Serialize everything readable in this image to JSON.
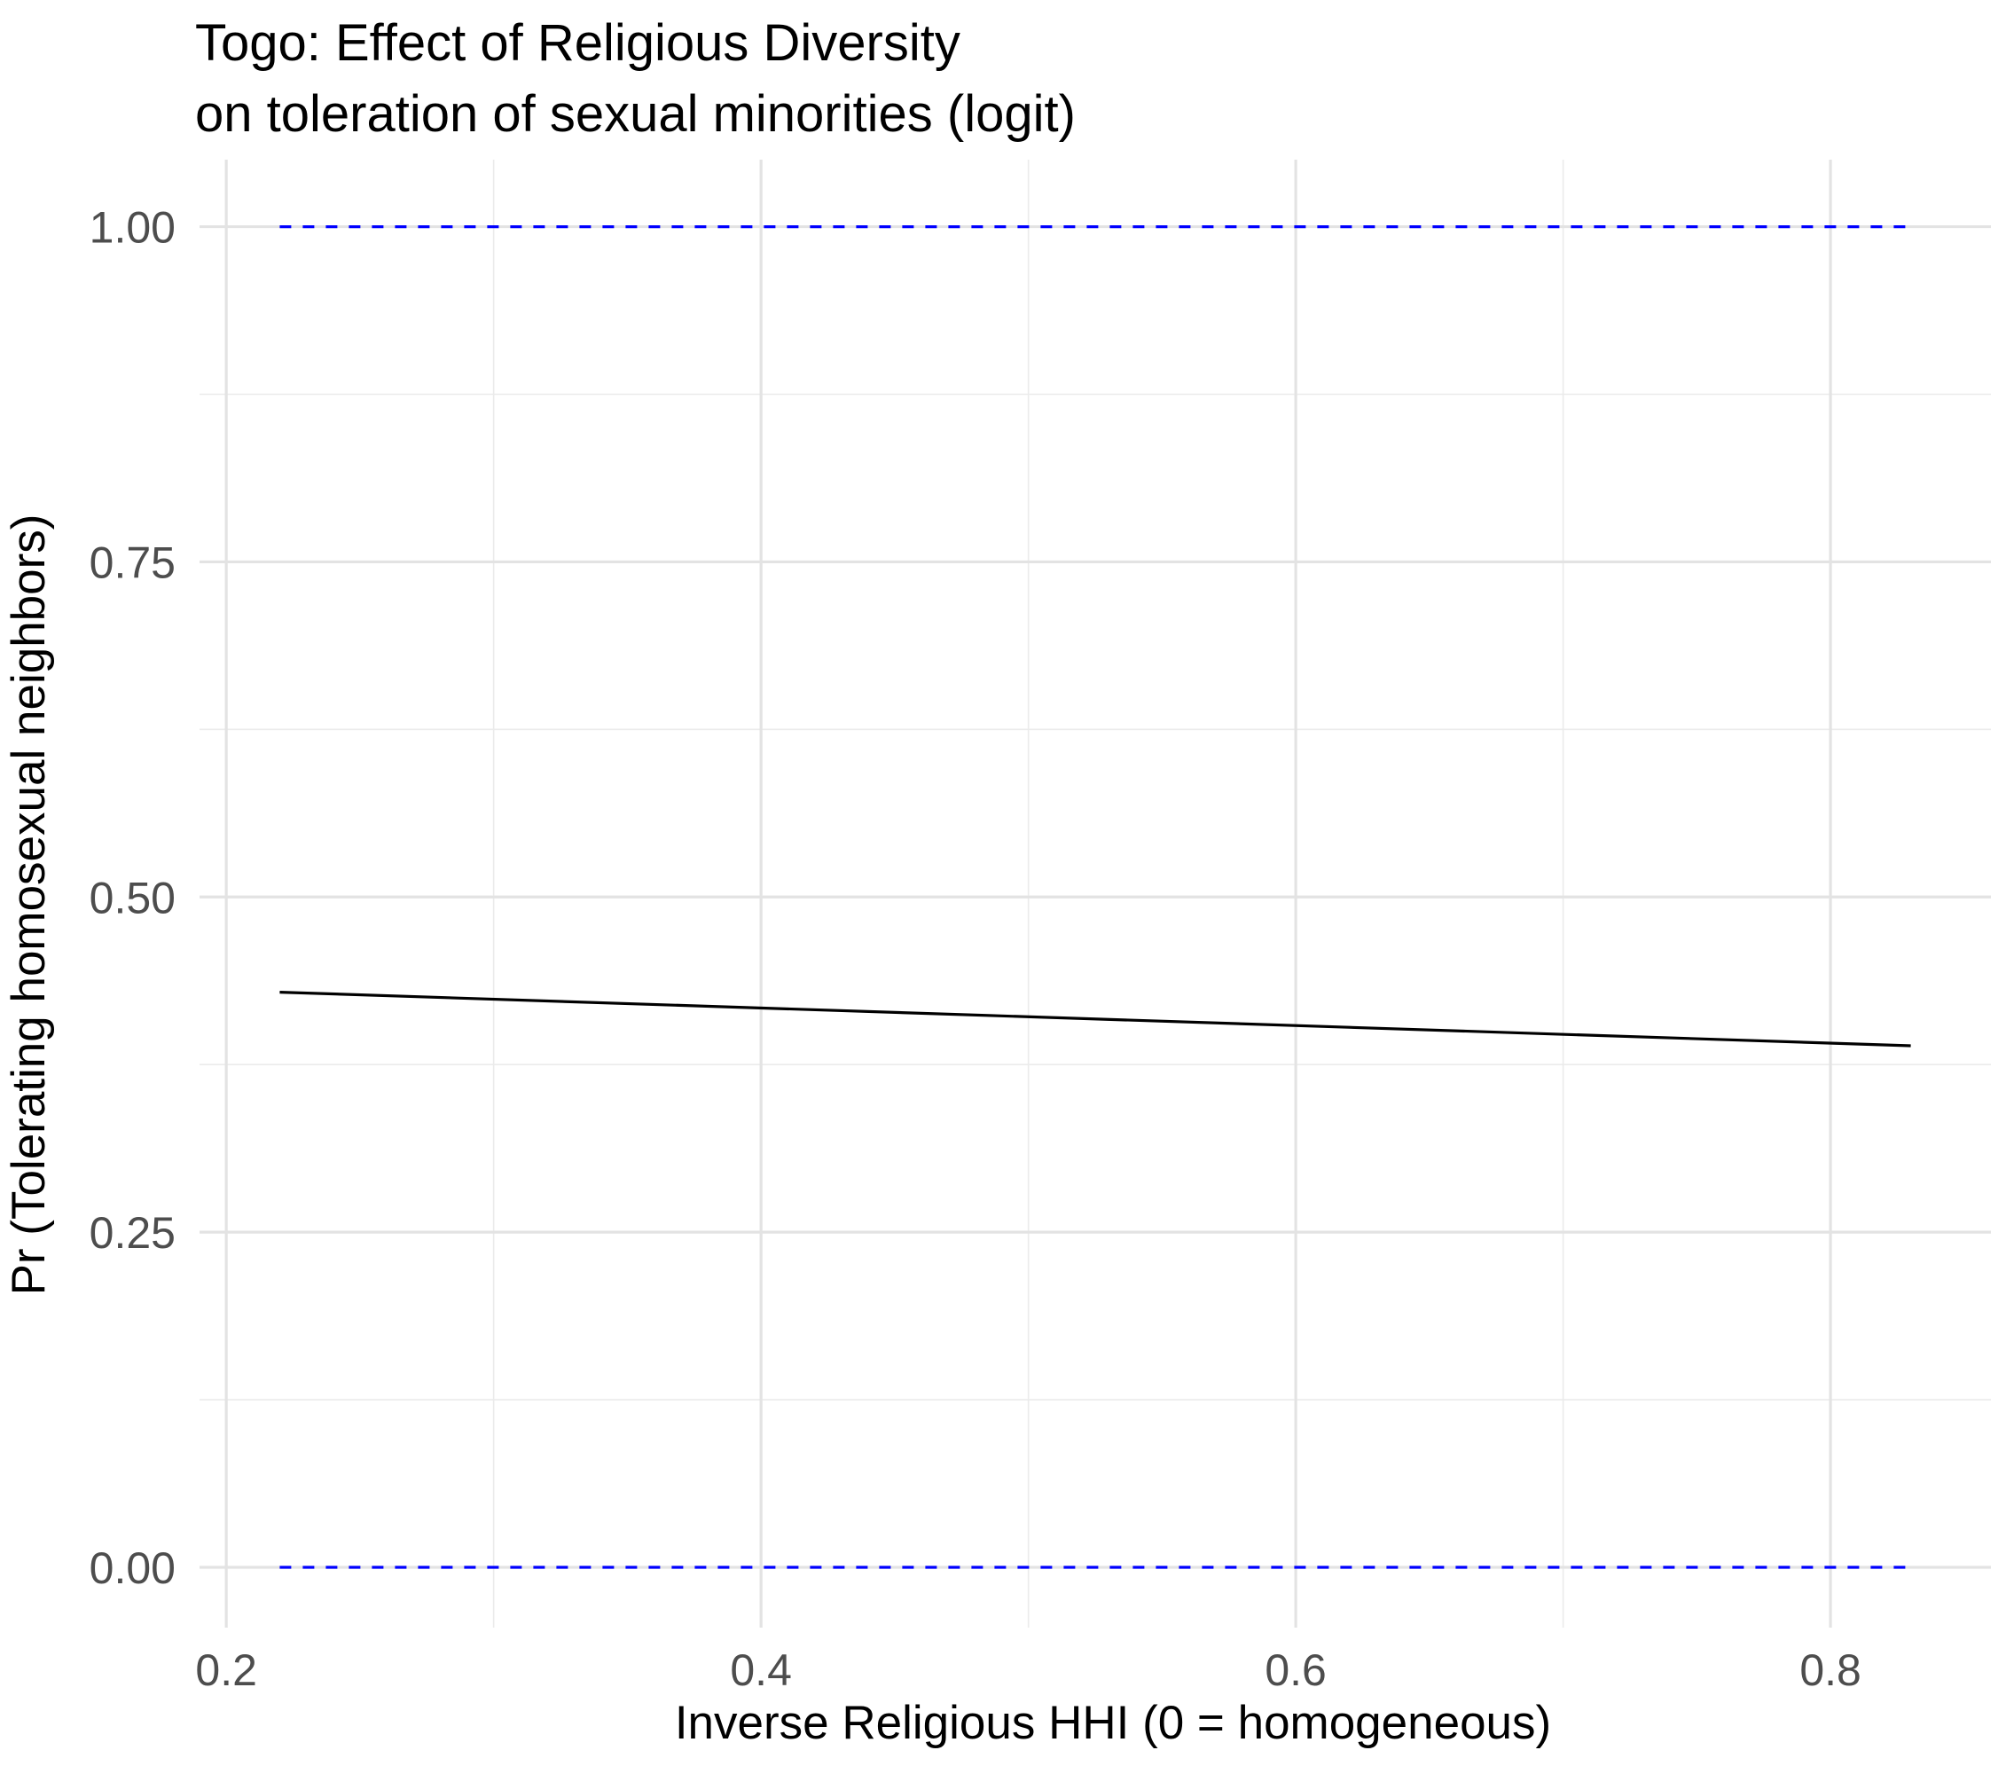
{
  "chart_data": {
    "type": "line",
    "title": "Togo: Effect of Religious Diversity",
    "subtitle": "on toleration of sexual minorities (logit)",
    "xlabel": "Inverse Religious HHI (0 = homogeneous)",
    "ylabel": "Pr (Tolerating homosexual neighbors)",
    "xlim": [
      0.19,
      0.86
    ],
    "ylim": [
      -0.045,
      1.05
    ],
    "x_ticks": [
      0.2,
      0.4,
      0.6,
      0.8
    ],
    "x_tick_labels": [
      "0.2",
      "0.4",
      "0.6",
      "0.8"
    ],
    "x_minor_ticks": [
      0.3,
      0.5,
      0.7
    ],
    "y_ticks": [
      0.0,
      0.25,
      0.5,
      0.75,
      1.0
    ],
    "y_tick_labels": [
      "0.00",
      "0.25",
      "0.50",
      "0.75",
      "1.00"
    ],
    "y_minor_ticks": [
      0.125,
      0.375,
      0.625,
      0.875
    ],
    "grid": true,
    "series": [
      {
        "style": "solid",
        "color": "#000000",
        "x": [
          0.22,
          0.83
        ],
        "y": [
          0.429,
          0.389
        ]
      },
      {
        "style": "dashed",
        "color": "#0000ff",
        "x": [
          0.22,
          0.83
        ],
        "y": [
          1.0,
          1.0
        ]
      },
      {
        "style": "dashed",
        "color": "#0000ff",
        "x": [
          0.22,
          0.83
        ],
        "y": [
          0.0,
          0.0
        ]
      }
    ]
  }
}
